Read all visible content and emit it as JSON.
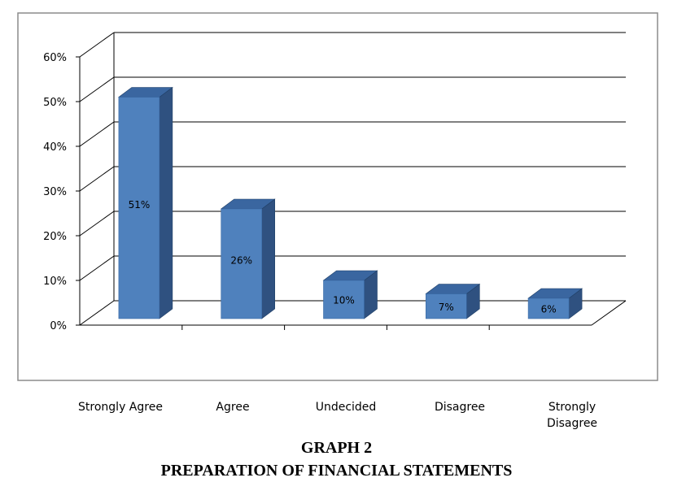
{
  "caption": {
    "line1": "GRAPH 2",
    "line2": "PREPARATION OF FINANCIAL STATEMENTS"
  },
  "chart_data": {
    "type": "bar",
    "style": "3d-column",
    "categories": [
      "Strongly Agree",
      "Agree",
      "Undecided",
      "Disagree",
      "Strongly Disagree"
    ],
    "values": [
      51,
      26,
      10,
      7,
      6
    ],
    "data_labels": [
      "51%",
      "26%",
      "10%",
      "7%",
      "6%"
    ],
    "y_ticks": [
      "0%",
      "10%",
      "20%",
      "30%",
      "40%",
      "50%",
      "60%"
    ],
    "ylim": [
      0,
      60
    ],
    "grid": true,
    "legend": "none",
    "colors": {
      "bar_front": "#4F81BD",
      "bar_side": "#2F5180",
      "bar_top": "#3A66A0",
      "grid": "#000000"
    }
  }
}
